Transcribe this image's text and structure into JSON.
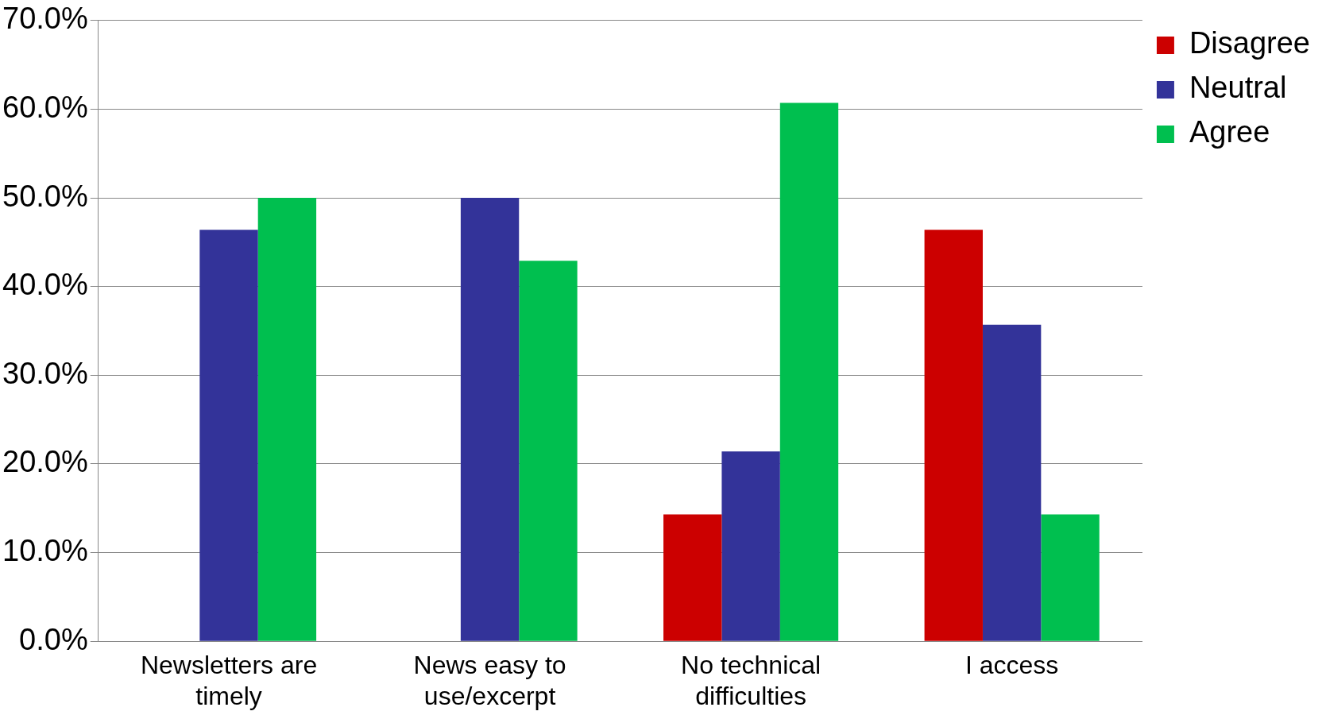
{
  "chart_data": {
    "type": "bar",
    "categories": [
      "Newsletters are timely",
      "News easy to use/excerpt",
      "No technical difficulties",
      "I access"
    ],
    "series": [
      {
        "name": "Disagree",
        "color": "#cc0000",
        "values": [
          0,
          0,
          14.3,
          46.4
        ]
      },
      {
        "name": "Neutral",
        "color": "#333399",
        "values": [
          46.4,
          50.0,
          21.4,
          35.7
        ]
      },
      {
        "name": "Agree",
        "color": "#00bf4f",
        "values": [
          50.0,
          42.9,
          60.7,
          14.3
        ]
      }
    ],
    "ylim": [
      0,
      70
    ],
    "yticks": [
      {
        "value": 0,
        "label": "0.0%"
      },
      {
        "value": 10,
        "label": "10.0%"
      },
      {
        "value": 20,
        "label": "20.0%"
      },
      {
        "value": 30,
        "label": "30.0%"
      },
      {
        "value": 40,
        "label": "40.0%"
      },
      {
        "value": 50,
        "label": "50.0%"
      },
      {
        "value": 60,
        "label": "60.0%"
      },
      {
        "value": 70,
        "label": "70.0%"
      }
    ],
    "grid": "y",
    "legend": "top right"
  }
}
